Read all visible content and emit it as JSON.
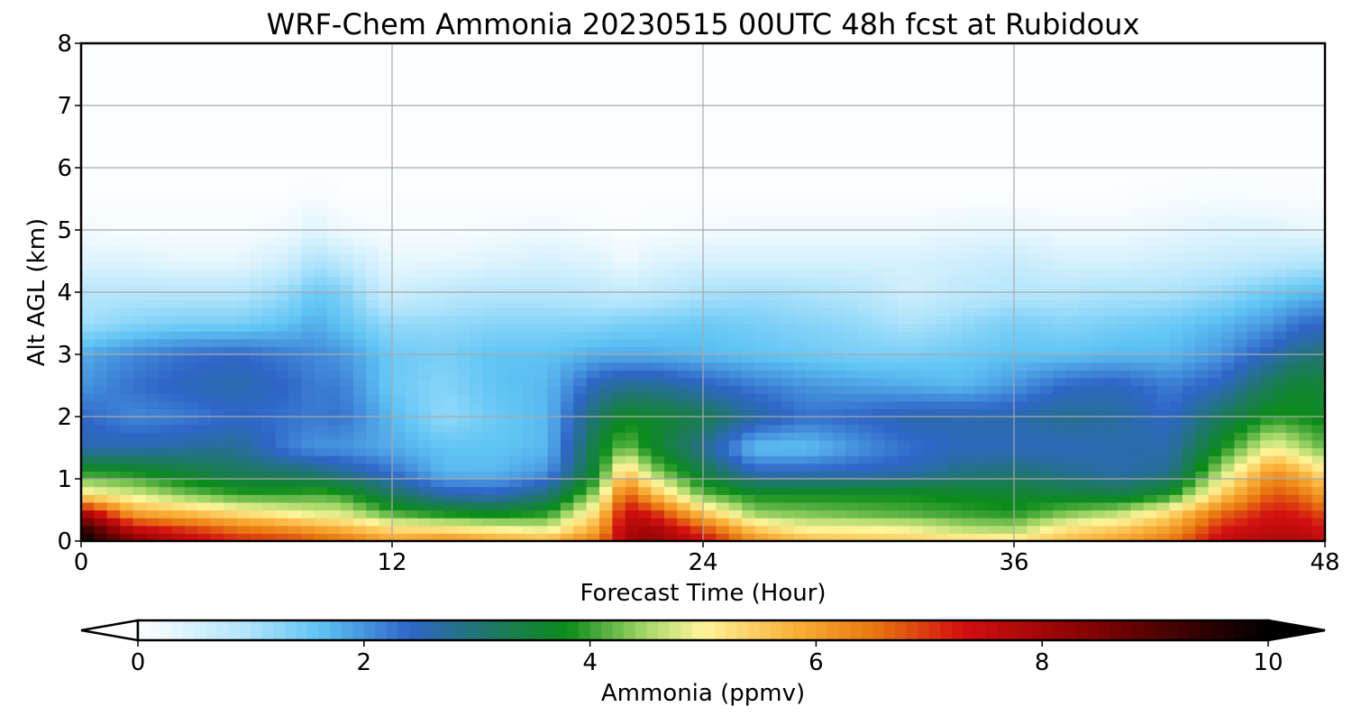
{
  "chart_data": {
    "type": "heatmap",
    "title": "WRF-Chem Ammonia  20230515 00UTC 48h fcst at Rubidoux",
    "xlabel": "Forecast Time (Hour)",
    "ylabel": "Alt AGL (km)",
    "xlim": [
      0,
      48
    ],
    "ylim": [
      0,
      8
    ],
    "x_ticks": [
      0,
      12,
      24,
      36,
      48
    ],
    "y_ticks": [
      0,
      1,
      2,
      3,
      4,
      5,
      6,
      7,
      8
    ],
    "grid": true,
    "colorbar": {
      "label": "Ammonia  (ppmv)",
      "range": [
        0,
        10
      ],
      "ticks": [
        0,
        2,
        4,
        6,
        8,
        10
      ],
      "extend": "both",
      "orientation": "horizontal",
      "colormap_stops": [
        {
          "value": 0,
          "color": "#ffffff"
        },
        {
          "value": 1,
          "color": "#aee3fb"
        },
        {
          "value": 1.6,
          "color": "#5fc4f4"
        },
        {
          "value": 2.4,
          "color": "#2f66c8"
        },
        {
          "value": 3.2,
          "color": "#1c7a5a"
        },
        {
          "value": 3.8,
          "color": "#0b8c1a"
        },
        {
          "value": 4.5,
          "color": "#a8d86a"
        },
        {
          "value": 5,
          "color": "#fff59a"
        },
        {
          "value": 5.8,
          "color": "#f9b13a"
        },
        {
          "value": 6.5,
          "color": "#e97811"
        },
        {
          "value": 7.3,
          "color": "#d21010"
        },
        {
          "value": 8.3,
          "color": "#8e0303"
        },
        {
          "value": 10,
          "color": "#000000"
        }
      ]
    },
    "x_hours": [
      0,
      2,
      4,
      6,
      8,
      9,
      10,
      12,
      14,
      16,
      18,
      20,
      21,
      22,
      24,
      26,
      28,
      30,
      32,
      34,
      36,
      38,
      40,
      42,
      44,
      46,
      47,
      48
    ],
    "y_levels_km": [
      0,
      0.2,
      0.45,
      0.75,
      1.1,
      1.5,
      2,
      2.5,
      3,
      3.5,
      4,
      4.5,
      5,
      5.5,
      6,
      8
    ],
    "z_ppmv": [
      [
        10,
        8.5,
        7.6,
        7.2,
        7.0,
        6.8,
        6.6,
        6.0,
        6.3,
        6.0,
        5.8,
        6.5,
        7.8,
        8.2,
        7.5,
        6.2,
        5.7,
        5.6,
        5.5,
        5.4,
        5.3,
        5.7,
        6.0,
        6.5,
        7.5,
        7.8,
        7.8,
        7.6
      ],
      [
        9.5,
        7.5,
        7.0,
        6.5,
        6.2,
        6.0,
        5.8,
        5.3,
        5.2,
        5.0,
        4.8,
        6.0,
        7.8,
        8.0,
        6.8,
        5.5,
        5.0,
        5.0,
        4.9,
        4.6,
        4.5,
        5.2,
        5.5,
        6.0,
        7.2,
        7.6,
        7.6,
        7.3
      ],
      [
        8.0,
        6.0,
        5.7,
        5.3,
        5.0,
        4.8,
        4.8,
        4.1,
        3.8,
        3.7,
        3.9,
        5.4,
        7.5,
        7.2,
        5.6,
        4.4,
        4.3,
        4.2,
        4.1,
        4.0,
        3.9,
        4.3,
        4.6,
        5.3,
        6.6,
        7.3,
        7.2,
        6.8
      ],
      [
        5.2,
        4.8,
        4.3,
        4.0,
        4.0,
        4.1,
        4.0,
        3.2,
        2.6,
        2.5,
        3.0,
        4.6,
        6.8,
        5.8,
        4.2,
        3.8,
        3.8,
        3.8,
        3.8,
        3.7,
        3.6,
        3.5,
        3.4,
        3.8,
        5.5,
        6.8,
        6.6,
        6.0
      ],
      [
        3.9,
        3.8,
        3.5,
        3.2,
        3.1,
        3.0,
        2.8,
        2.3,
        1.7,
        1.7,
        2.0,
        3.8,
        5.6,
        4.5,
        3.4,
        2.5,
        2.5,
        2.5,
        2.6,
        2.9,
        3.0,
        2.8,
        2.6,
        2.8,
        4.6,
        6.2,
        5.8,
        5.2
      ],
      [
        2.6,
        2.6,
        2.7,
        2.8,
        2.2,
        2.0,
        2.0,
        1.8,
        1.6,
        1.6,
        1.7,
        3.6,
        4.3,
        3.7,
        2.8,
        1.6,
        1.6,
        2.0,
        2.3,
        2.5,
        2.5,
        2.5,
        2.6,
        2.6,
        3.8,
        5.0,
        4.6,
        4.2
      ],
      [
        2.4,
        2.1,
        2.2,
        2.4,
        2.3,
        2.2,
        2.3,
        1.7,
        1.2,
        1.5,
        1.7,
        3.2,
        3.7,
        3.6,
        3.3,
        2.7,
        2.3,
        2.4,
        2.6,
        2.6,
        2.6,
        2.8,
        2.7,
        2.4,
        3.2,
        3.9,
        3.8,
        3.7
      ],
      [
        2.0,
        2.3,
        2.5,
        2.6,
        2.4,
        2.2,
        2.2,
        1.5,
        1.3,
        1.6,
        1.7,
        2.6,
        2.8,
        2.8,
        2.5,
        2.2,
        2.0,
        1.9,
        1.8,
        1.7,
        2.0,
        2.4,
        2.5,
        2.2,
        2.5,
        3.3,
        3.6,
        3.5
      ],
      [
        1.8,
        2.1,
        2.3,
        2.4,
        2.2,
        2.1,
        2.0,
        1.5,
        1.4,
        1.6,
        1.6,
        1.8,
        1.8,
        1.8,
        1.7,
        1.6,
        1.5,
        1.4,
        1.4,
        1.5,
        1.6,
        1.6,
        1.7,
        1.7,
        2.0,
        2.6,
        2.9,
        3.0
      ],
      [
        1.1,
        1.3,
        1.4,
        1.4,
        1.6,
        1.8,
        1.6,
        1.2,
        1.2,
        1.3,
        1.3,
        1.3,
        1.4,
        1.4,
        1.5,
        1.4,
        1.3,
        1.2,
        1.0,
        1.2,
        1.4,
        1.3,
        1.4,
        1.5,
        1.7,
        2.0,
        2.3,
        2.4
      ],
      [
        0.9,
        0.9,
        0.9,
        0.9,
        1.2,
        1.5,
        1.4,
        0.6,
        0.8,
        0.9,
        0.9,
        0.8,
        0.7,
        0.8,
        1.0,
        1.1,
        1.0,
        0.9,
        0.6,
        0.8,
        0.9,
        0.9,
        1.0,
        1.0,
        1.2,
        1.5,
        1.6,
        1.7
      ],
      [
        0.4,
        0.4,
        0.3,
        0.3,
        0.6,
        1.0,
        0.8,
        0.3,
        0.3,
        0.4,
        0.5,
        0.4,
        0.2,
        0.4,
        0.5,
        0.5,
        0.5,
        0.5,
        0.5,
        0.6,
        0.7,
        0.5,
        0.5,
        0.6,
        0.7,
        0.8,
        0.9,
        0.9
      ],
      [
        0.15,
        0.1,
        0.1,
        0.1,
        0.2,
        0.4,
        0.2,
        0.1,
        0.1,
        0.15,
        0.2,
        0.1,
        0.05,
        0.1,
        0.15,
        0.2,
        0.2,
        0.2,
        0.2,
        0.3,
        0.3,
        0.2,
        0.2,
        0.3,
        0.4,
        0.4,
        0.3,
        0.3
      ],
      [
        0.05,
        0.05,
        0.05,
        0.05,
        0.05,
        0.15,
        0.05,
        0.05,
        0.05,
        0.05,
        0.05,
        0.05,
        0.05,
        0.05,
        0.05,
        0.05,
        0.05,
        0.05,
        0.05,
        0.05,
        0.05,
        0.05,
        0.05,
        0.1,
        0.15,
        0.1,
        0.1,
        0.1
      ],
      [
        0.03,
        0.03,
        0.03,
        0.03,
        0.03,
        0.03,
        0.03,
        0.03,
        0.03,
        0.03,
        0.03,
        0.03,
        0.03,
        0.03,
        0.03,
        0.03,
        0.03,
        0.03,
        0.03,
        0.03,
        0.03,
        0.03,
        0.03,
        0.03,
        0.03,
        0.03,
        0.03,
        0.03
      ],
      [
        0.03,
        0.03,
        0.03,
        0.03,
        0.03,
        0.03,
        0.03,
        0.03,
        0.03,
        0.03,
        0.03,
        0.03,
        0.03,
        0.03,
        0.03,
        0.03,
        0.03,
        0.03,
        0.03,
        0.03,
        0.03,
        0.03,
        0.03,
        0.03,
        0.03,
        0.03,
        0.03,
        0.03
      ]
    ]
  }
}
